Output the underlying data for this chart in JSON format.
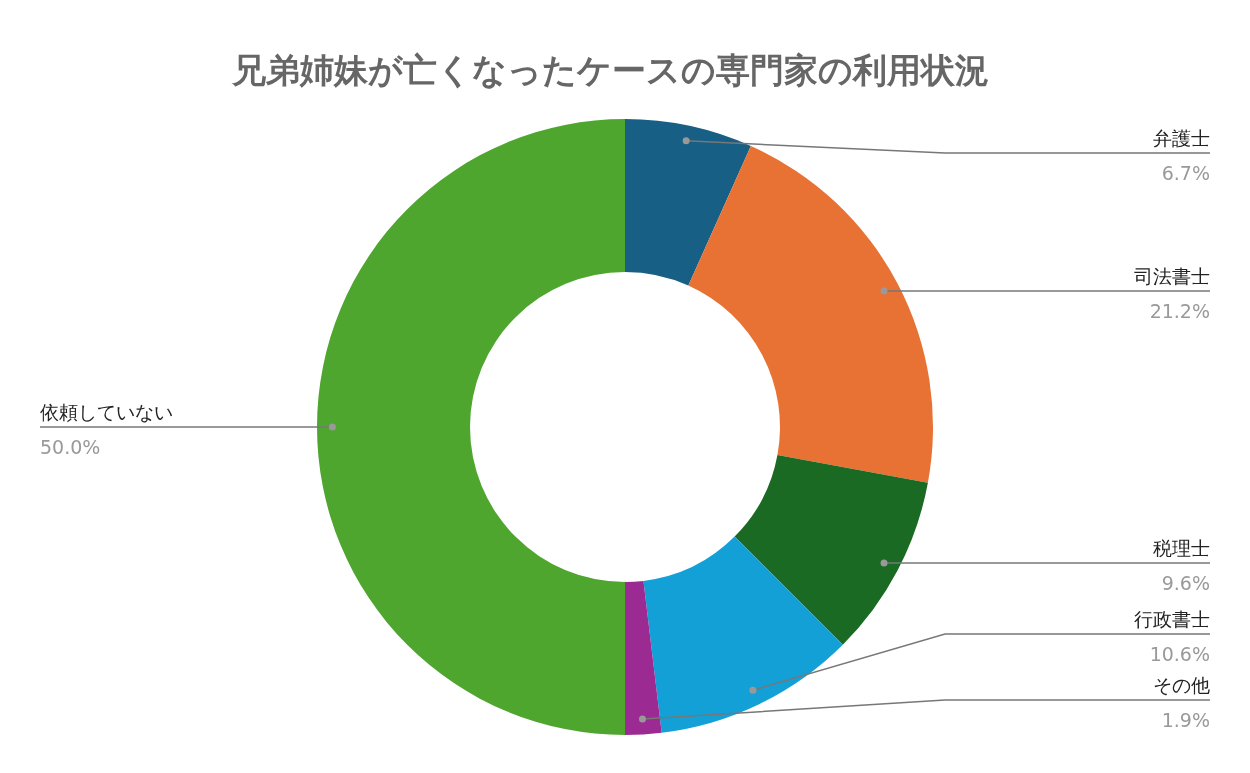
{
  "chart_data": {
    "type": "donut",
    "title": "兄弟姉妹が亡くなったケースの専門家の利用状況",
    "categories": [
      "弁護士",
      "司法書士",
      "税理士",
      "行政書士",
      "その他",
      "依頼していない"
    ],
    "values": [
      6.7,
      21.2,
      9.6,
      10.6,
      1.9,
      50.0
    ],
    "value_labels": [
      "6.7%",
      "21.2%",
      "9.6%",
      "10.6%",
      "1.9%",
      "50.0%"
    ],
    "colors": [
      "#175f84",
      "#e87234",
      "#1a6a24",
      "#12a0d7",
      "#9b2a92",
      "#4fa62f"
    ],
    "legend": false
  }
}
